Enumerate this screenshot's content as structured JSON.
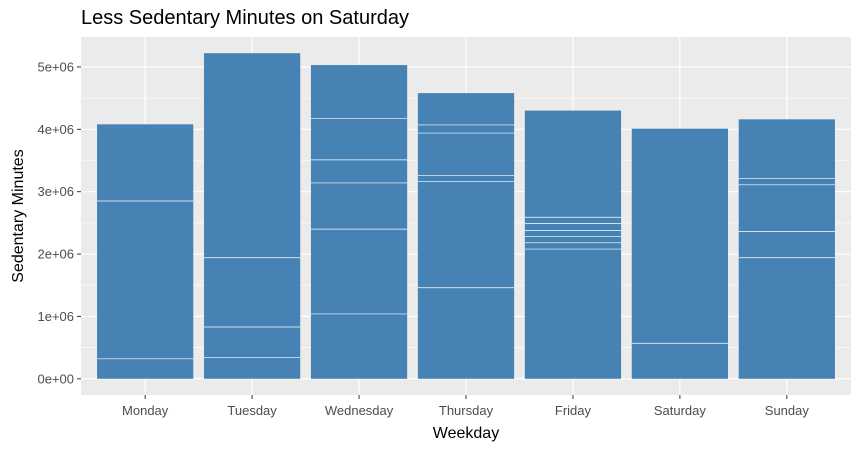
{
  "chart_data": {
    "type": "bar",
    "title": "Less Sedentary Minutes on Saturday",
    "xlabel": "Weekday",
    "ylabel": "Sedentary Minutes",
    "categories": [
      "Monday",
      "Tuesday",
      "Wednesday",
      "Thursday",
      "Friday",
      "Saturday",
      "Sunday"
    ],
    "values": [
      4080000,
      5220000,
      5030000,
      4580000,
      4300000,
      4010000,
      4160000
    ],
    "stack_boundaries": [
      [
        320000,
        2850000
      ],
      [
        340000,
        830000,
        1940000
      ],
      [
        1040000,
        2400000,
        3140000,
        3510000,
        4170000
      ],
      [
        1460000,
        3160000,
        3260000,
        3940000,
        4070000
      ],
      [
        2080000,
        2180000,
        2280000,
        2380000,
        2490000,
        2590000
      ],
      [
        570000
      ],
      [
        1940000,
        2360000,
        3110000,
        3210000
      ]
    ],
    "yticks": [
      0,
      1000000,
      2000000,
      3000000,
      4000000,
      5000000
    ],
    "ytick_labels": [
      "0e+00",
      "1e+06",
      "2e+06",
      "3e+06",
      "4e+06",
      "5e+06"
    ],
    "ylim": [
      -260000,
      5480000
    ],
    "bar_color": "#4682B4",
    "panel_color": "#EBEBEB",
    "grid": true,
    "legend": "none"
  }
}
